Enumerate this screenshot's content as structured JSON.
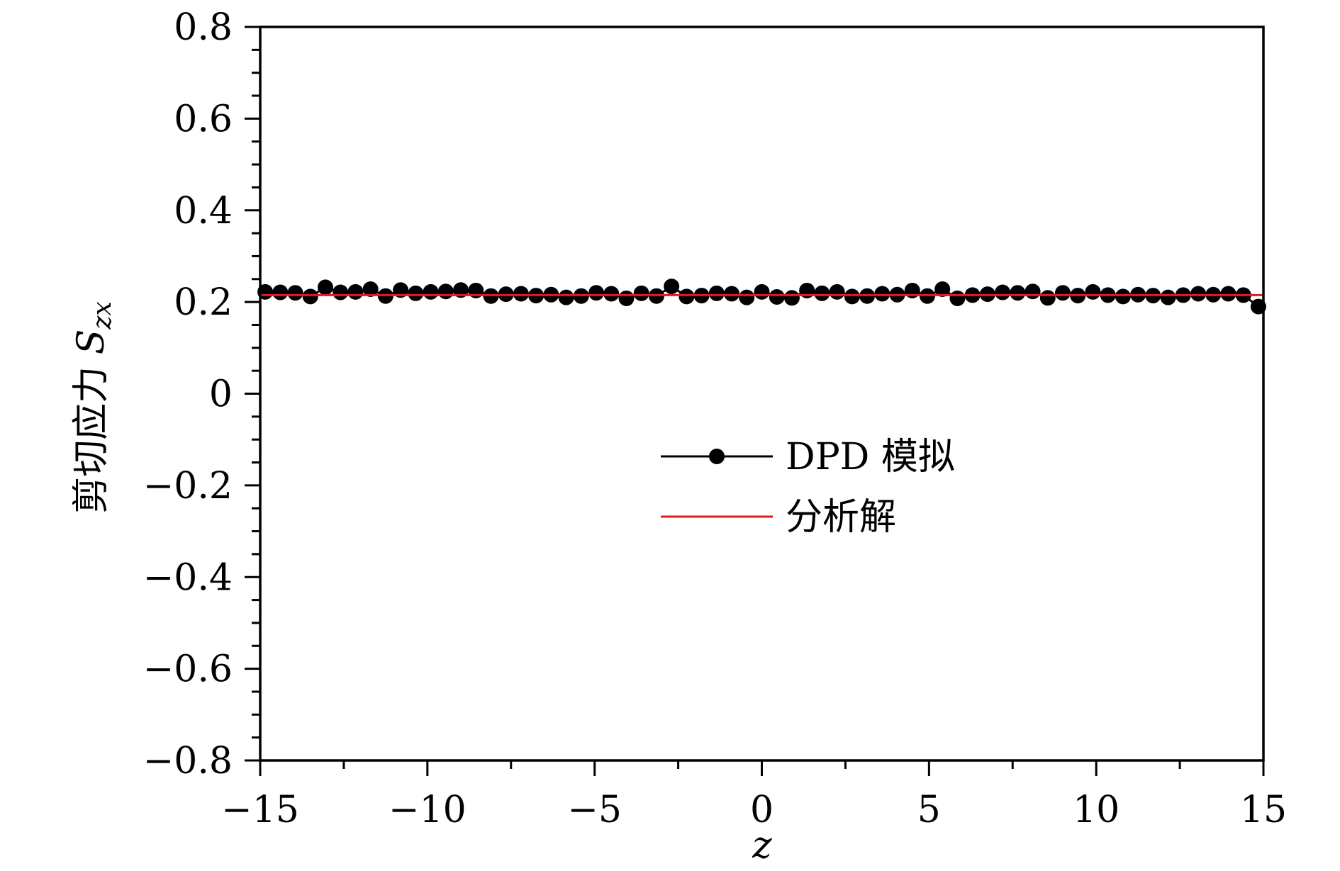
{
  "chart_data": {
    "type": "line",
    "xlabel": "z",
    "ylabel": {
      "text": "剪切应力",
      "symbol": "S",
      "subscript": "zx"
    },
    "xlim": [
      -15,
      15
    ],
    "ylim": [
      -0.8,
      0.8
    ],
    "x_ticks": [
      -15,
      -10,
      -5,
      0,
      5,
      10,
      15
    ],
    "x_tick_labels": [
      "−15",
      "−10",
      "−5",
      "0",
      "5",
      "10",
      "15"
    ],
    "x_minor_step": 2.5,
    "y_ticks": [
      0.8,
      0.6,
      0.4,
      0.2,
      0,
      -0.2,
      -0.4,
      -0.6,
      -0.8
    ],
    "y_tick_labels": [
      "0.8",
      "0.6",
      "0.4",
      "0.2",
      "0",
      "−0.2",
      "−0.4",
      "−0.6",
      "−0.8"
    ],
    "y_minor_step": 0.05,
    "grid": false,
    "legend_position": "center",
    "series": [
      {
        "name": "DPD 模拟",
        "style": "line-marker",
        "color": "#000000",
        "x": [
          -14.85,
          -14.4,
          -13.95,
          -13.5,
          -13.05,
          -12.6,
          -12.15,
          -11.7,
          -11.25,
          -10.8,
          -10.35,
          -9.9,
          -9.45,
          -9.0,
          -8.55,
          -8.1,
          -7.65,
          -7.2,
          -6.75,
          -6.3,
          -5.85,
          -5.4,
          -4.95,
          -4.5,
          -4.05,
          -3.6,
          -3.15,
          -2.7,
          -2.25,
          -1.8,
          -1.35,
          -0.9,
          -0.45,
          0.0,
          0.45,
          0.9,
          1.35,
          1.8,
          2.25,
          2.7,
          3.15,
          3.6,
          4.05,
          4.5,
          4.95,
          5.4,
          5.85,
          6.3,
          6.75,
          7.2,
          7.65,
          8.1,
          8.55,
          9.0,
          9.45,
          9.9,
          10.35,
          10.8,
          11.25,
          11.7,
          12.15,
          12.6,
          13.05,
          13.5,
          13.95,
          14.4,
          14.85
        ],
        "y": [
          0.222,
          0.221,
          0.22,
          0.212,
          0.232,
          0.221,
          0.222,
          0.228,
          0.213,
          0.226,
          0.219,
          0.222,
          0.223,
          0.226,
          0.225,
          0.213,
          0.217,
          0.218,
          0.214,
          0.216,
          0.21,
          0.213,
          0.22,
          0.218,
          0.208,
          0.219,
          0.213,
          0.234,
          0.212,
          0.214,
          0.219,
          0.218,
          0.21,
          0.222,
          0.211,
          0.209,
          0.225,
          0.219,
          0.222,
          0.212,
          0.213,
          0.218,
          0.216,
          0.225,
          0.213,
          0.228,
          0.208,
          0.215,
          0.217,
          0.221,
          0.22,
          0.223,
          0.209,
          0.22,
          0.214,
          0.222,
          0.215,
          0.212,
          0.216,
          0.214,
          0.21,
          0.215,
          0.218,
          0.216,
          0.218,
          0.215,
          0.19
        ]
      },
      {
        "name": "分析解",
        "style": "line",
        "color": "#e31a1c",
        "x": [
          -15,
          15
        ],
        "y": [
          0.215,
          0.215
        ]
      }
    ]
  }
}
